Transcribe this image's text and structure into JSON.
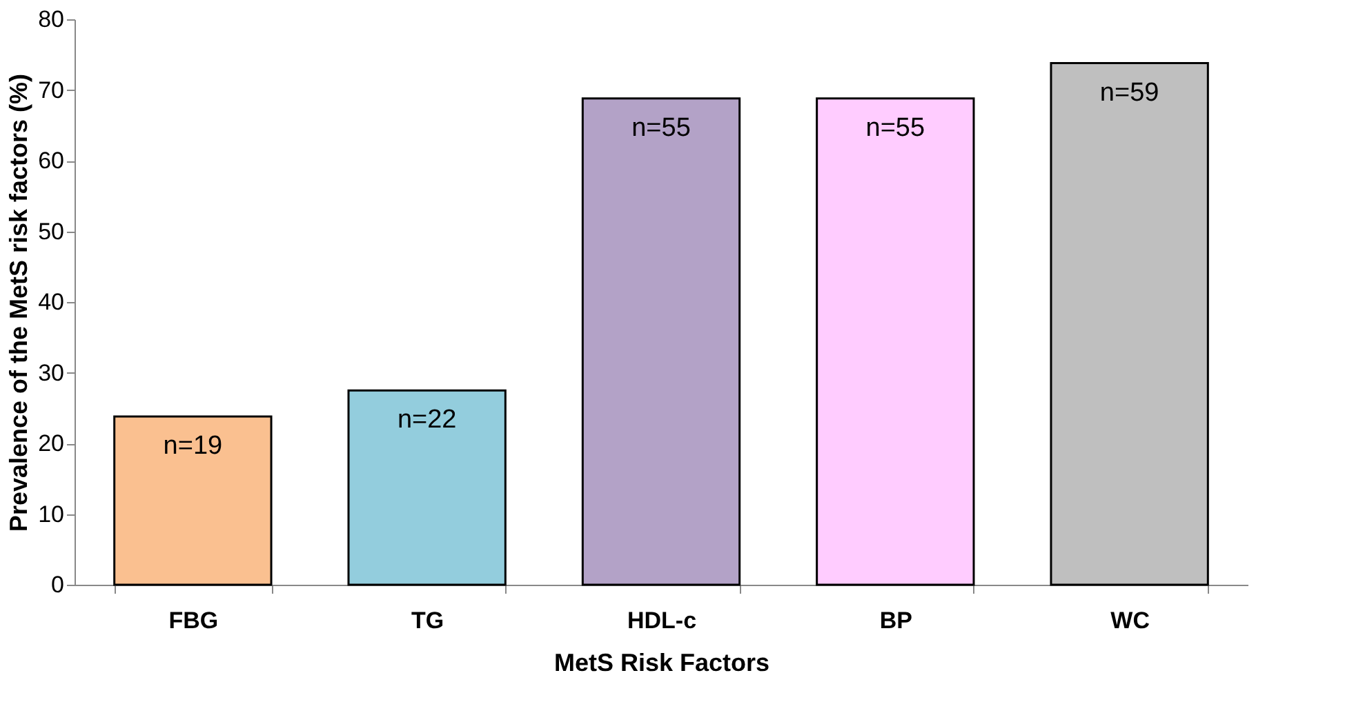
{
  "chart_data": {
    "type": "bar",
    "xlabel": "MetS Risk Factors",
    "ylabel": "Prevalence of the MetS risk factors (%)",
    "categories": [
      "FBG",
      "TG",
      "HDL-c",
      "BP",
      "WC"
    ],
    "values": [
      23.8,
      27.5,
      68.8,
      68.8,
      73.8
    ],
    "colors": [
      "#fac090",
      "#93cddd",
      "#b3a2c7",
      "#ffccff",
      "#bfbfbf"
    ],
    "annotations": [
      {
        "text": "n=19",
        "x": "FBG",
        "y": 23.8
      },
      {
        "text": "n=22",
        "x": "TG",
        "y": 27.5
      },
      {
        "text": "n=55",
        "x": "HDL-c",
        "y": 68.8
      },
      {
        "text": "n=55",
        "x": "BP",
        "y": 68.8
      },
      {
        "text": "n=59",
        "x": "WC",
        "y": 73.8
      }
    ],
    "ylim": [
      0,
      80
    ],
    "yticks": [
      0,
      10,
      20,
      30,
      40,
      50,
      60,
      70,
      80
    ],
    "grid": false
  }
}
